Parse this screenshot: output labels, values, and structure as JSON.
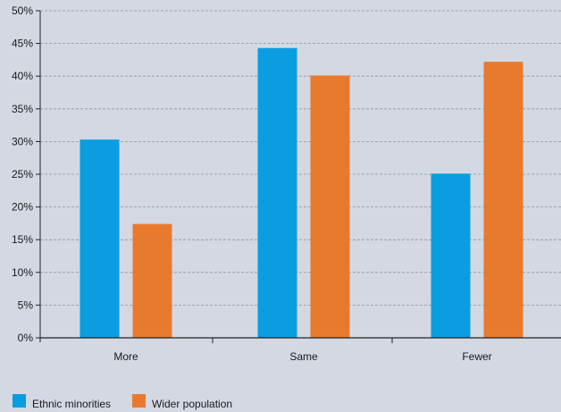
{
  "chart_data": {
    "type": "bar",
    "categories": [
      "More",
      "Same",
      "Fewer"
    ],
    "series": [
      {
        "name": "Ethnic minorities",
        "values": [
          30.3,
          44.3,
          25.1
        ],
        "color": "#0a9ddf"
      },
      {
        "name": "Wider population",
        "values": [
          17.4,
          40.1,
          42.2
        ],
        "color": "#e87a2e"
      }
    ],
    "title": "",
    "xlabel": "",
    "ylabel": "",
    "ylim": [
      0,
      50
    ],
    "yticks": [
      "0%",
      "5%",
      "10%",
      "15%",
      "20%",
      "25%",
      "30%",
      "35%",
      "40%",
      "45%",
      "50%"
    ],
    "grid": true,
    "legend": "bottom-left"
  }
}
